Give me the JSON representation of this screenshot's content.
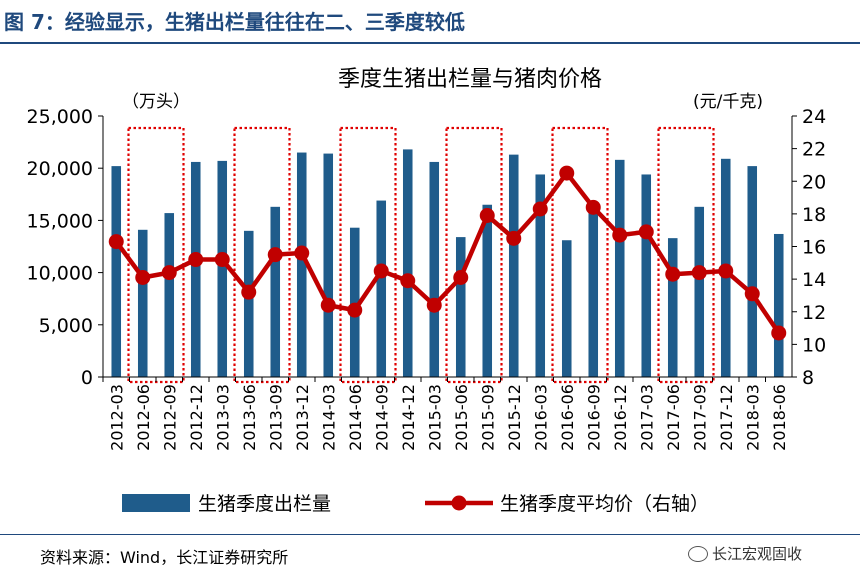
{
  "figure": {
    "caption": "图 7：经验显示，生猪出栏量往往在二、三季度较低",
    "source": "资料来源：Wind，长江证券研究所",
    "watermark": "长江宏观固收"
  },
  "chart_data": {
    "type": "bar",
    "title": "季度生猪出栏量与猪肉价格",
    "categories": [
      "2012-03",
      "2012-06",
      "2012-09",
      "2012-12",
      "2013-03",
      "2013-06",
      "2013-09",
      "2013-12",
      "2014-03",
      "2014-06",
      "2014-09",
      "2014-12",
      "2015-03",
      "2015-06",
      "2015-09",
      "2015-12",
      "2016-03",
      "2016-06",
      "2016-09",
      "2016-12",
      "2017-03",
      "2017-06",
      "2017-09",
      "2017-12",
      "2018-03",
      "2018-06"
    ],
    "left_axis": {
      "unit_label": "（万头）",
      "ylim": [
        0,
        25000
      ],
      "ticks": [
        "0",
        "5,000",
        "10,000",
        "15,000",
        "20,000",
        "25,000"
      ]
    },
    "right_axis": {
      "unit_label": "(元/千克)",
      "ylim": [
        8,
        24
      ],
      "ticks": [
        "8",
        "10",
        "12",
        "14",
        "16",
        "18",
        "20",
        "22",
        "24"
      ]
    },
    "series": [
      {
        "name": "生猪季度出栏量",
        "type": "bar",
        "axis": "left",
        "color": "#1f5c8b",
        "values": [
          20200,
          14100,
          15700,
          20600,
          20700,
          14000,
          16300,
          21500,
          21400,
          14300,
          16900,
          21800,
          20600,
          13400,
          16500,
          21300,
          19400,
          13100,
          16700,
          20800,
          19400,
          13300,
          16300,
          20900,
          20200,
          13700
        ]
      },
      {
        "name": "生猪季度平均价（右轴）",
        "type": "line",
        "axis": "right",
        "color": "#c00000",
        "values": [
          16.3,
          14.1,
          14.4,
          15.2,
          15.2,
          13.2,
          15.5,
          15.6,
          12.4,
          12.1,
          14.5,
          13.9,
          12.4,
          14.1,
          17.9,
          16.5,
          18.3,
          20.5,
          18.4,
          16.7,
          16.9,
          14.3,
          14.4,
          14.5,
          13.1,
          10.7
        ]
      }
    ],
    "highlight_ranges": [
      [
        1,
        2
      ],
      [
        5,
        6
      ],
      [
        9,
        10
      ],
      [
        13,
        14
      ],
      [
        17,
        18
      ],
      [
        21,
        22
      ]
    ],
    "legend_position": "bottom",
    "grid": false
  }
}
